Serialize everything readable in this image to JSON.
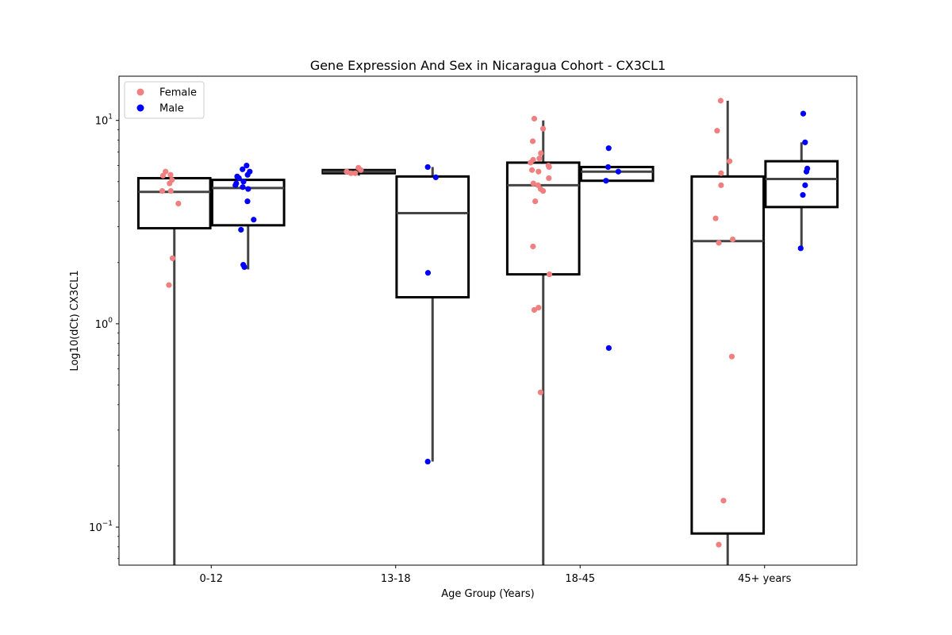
{
  "chart_data": {
    "type": "box",
    "title": "Gene Expression And Sex in Nicaragua Cohort - CX3CL1",
    "xlabel": "Age Group (Years)",
    "ylabel": "Log10(dCt) CX3CL1",
    "yscale": "log",
    "ylim": [
      0.065,
      16.5
    ],
    "categories": [
      "0-12",
      "13-18",
      "18-45",
      "45+ years"
    ],
    "y_ticks": [
      {
        "value": 0.1,
        "base": "10",
        "exp": "−1"
      },
      {
        "value": 1,
        "base": "10",
        "exp": "0"
      },
      {
        "value": 10,
        "base": "10",
        "exp": "1"
      }
    ],
    "legend": {
      "position": "upper left",
      "entries": [
        {
          "label": "Female",
          "color": "#f08080"
        },
        {
          "label": "Male",
          "color": "#0000ff"
        }
      ]
    },
    "series": [
      {
        "name": "Female",
        "color": "#f08080",
        "boxes": [
          {
            "category": "0-12",
            "q1": 2.95,
            "median": 4.45,
            "q3": 5.2,
            "whisker_low": 0.05,
            "whisker_high": 5.2
          },
          {
            "category": "13-18",
            "q1": 5.5,
            "median": 5.6,
            "q3": 5.7,
            "whisker_low": 5.35,
            "whisker_high": 5.85
          },
          {
            "category": "18-45",
            "q1": 1.75,
            "median": 4.8,
            "q3": 6.2,
            "whisker_low": 0.05,
            "whisker_high": 10.0
          },
          {
            "category": "45+ years",
            "q1": 0.093,
            "median": 2.55,
            "q3": 5.3,
            "whisker_low": 0.05,
            "whisker_high": 12.5
          }
        ],
        "points": [
          {
            "category": "0-12",
            "values": [
              5.4,
              5.1,
              5.35,
              5.6,
              4.9,
              4.5,
              4.5,
              3.9,
              2.1,
              1.55
            ]
          },
          {
            "category": "13-18",
            "values": [
              5.5,
              5.7,
              5.85,
              5.6,
              5.5
            ]
          },
          {
            "category": "18-45",
            "values": [
              10.2,
              9.1,
              7.9,
              6.9,
              6.5,
              6.4,
              6.2,
              6.0,
              5.9,
              5.7,
              5.6,
              5.2,
              4.9,
              4.8,
              4.6,
              4.5,
              4.0,
              2.4,
              1.75,
              1.2,
              1.17,
              0.46
            ]
          },
          {
            "category": "45+ years",
            "values": [
              12.5,
              8.9,
              6.3,
              5.5,
              4.8,
              3.3,
              2.6,
              2.5,
              0.69,
              0.135,
              0.082
            ]
          }
        ]
      },
      {
        "name": "Male",
        "color": "#0000ff",
        "boxes": [
          {
            "category": "0-12",
            "q1": 3.05,
            "median": 4.65,
            "q3": 5.1,
            "whisker_low": 1.85,
            "whisker_high": 5.1
          },
          {
            "category": "13-18",
            "q1": 1.35,
            "median": 3.5,
            "q3": 5.3,
            "whisker_low": 0.21,
            "whisker_high": 5.9
          },
          {
            "category": "18-45",
            "q1": 5.05,
            "median": 5.6,
            "q3": 5.9,
            "whisker_low": 5.05,
            "whisker_high": 5.9
          },
          {
            "category": "45+ years",
            "q1": 3.75,
            "median": 5.15,
            "q3": 6.3,
            "whisker_low": 2.35,
            "whisker_high": 7.8
          }
        ],
        "points": [
          {
            "category": "0-12",
            "values": [
              6.0,
              5.75,
              5.6,
              5.4,
              5.3,
              5.2,
              5.0,
              4.9,
              4.8,
              4.7,
              4.6,
              4.0,
              3.25,
              2.9,
              1.95,
              1.9
            ]
          },
          {
            "category": "13-18",
            "values": [
              5.9,
              5.25,
              1.78,
              0.21
            ]
          },
          {
            "category": "18-45",
            "values": [
              7.3,
              5.9,
              5.6,
              5.05,
              0.76
            ]
          },
          {
            "category": "45+ years",
            "values": [
              10.8,
              7.8,
              5.8,
              5.6,
              4.8,
              4.3,
              2.35
            ]
          }
        ]
      }
    ]
  }
}
